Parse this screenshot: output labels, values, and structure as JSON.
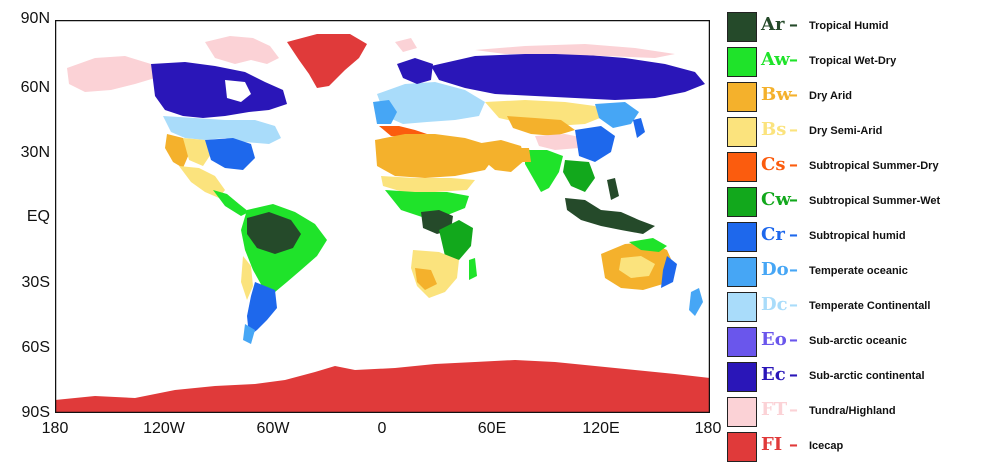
{
  "axes": {
    "lat_labels": [
      "90N",
      "60N",
      "30N",
      "EQ",
      "30S",
      "60S",
      "90S"
    ],
    "lon_labels": [
      "180",
      "120W",
      "60W",
      "0",
      "60E",
      "120E",
      "180"
    ]
  },
  "legend": [
    {
      "code": "Ar",
      "label": "Tropical Humid",
      "color": "#254a2a"
    },
    {
      "code": "Aw",
      "label": "Tropical Wet-Dry",
      "color": "#1fe32a"
    },
    {
      "code": "Bw",
      "label": "Dry Arid",
      "color": "#f4b12c"
    },
    {
      "code": "Bs",
      "label": "Dry Semi-Arid",
      "color": "#fbe37d"
    },
    {
      "code": "Cs",
      "label": "Subtropical Summer-Dry",
      "color": "#fb5c0e"
    },
    {
      "code": "Cw",
      "label": "Subtropical Summer-Wet",
      "color": "#12a81c"
    },
    {
      "code": "Cr",
      "label": "Subtropical humid",
      "color": "#1e68ec"
    },
    {
      "code": "Do",
      "label": "Temperate oceanic",
      "color": "#46a6f5"
    },
    {
      "code": "Dc",
      "label": "Temperate Continentall",
      "color": "#a9dcfa"
    },
    {
      "code": "Eo",
      "label": "Sub-arctic oceanic",
      "color": "#6a56ec"
    },
    {
      "code": "Ec",
      "label": "Sub-arctic continental",
      "color": "#2a16b8"
    },
    {
      "code": "FT",
      "label": "Tundra/Highland",
      "color": "#fbd2d6"
    },
    {
      "code": "FI",
      "label": "Icecap",
      "color": "#e03a3a"
    }
  ],
  "colors": {
    "border": "#111111",
    "ocean": "#ffffff"
  }
}
